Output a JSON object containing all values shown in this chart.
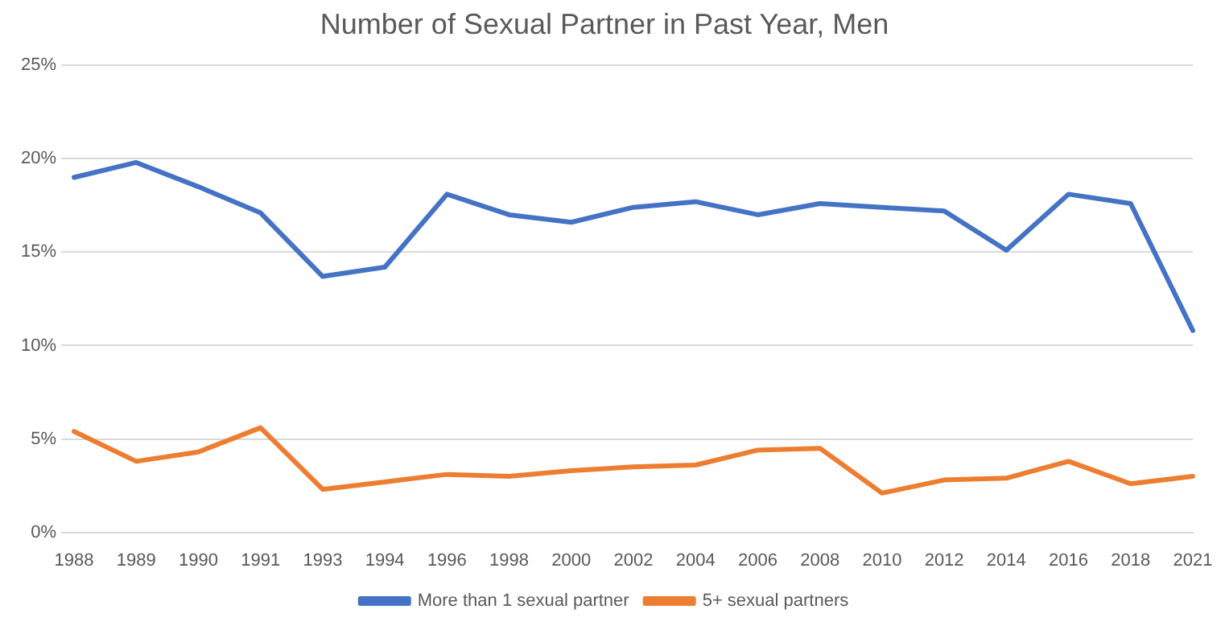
{
  "chart_data": {
    "type": "line",
    "title": "Number of Sexual Partner in Past Year, Men",
    "categories": [
      "1988",
      "1989",
      "1990",
      "1991",
      "1993",
      "1994",
      "1996",
      "1998",
      "2000",
      "2002",
      "2004",
      "2006",
      "2008",
      "2010",
      "2012",
      "2014",
      "2016",
      "2018",
      "2021"
    ],
    "series": [
      {
        "name": "More than 1 sexual partner",
        "color": "#4472c4",
        "values": [
          19.0,
          19.8,
          18.5,
          17.1,
          13.7,
          14.2,
          18.1,
          17.0,
          16.6,
          17.4,
          17.7,
          17.0,
          17.6,
          17.4,
          17.2,
          15.1,
          18.1,
          17.6,
          10.8
        ]
      },
      {
        "name": "5+ sexual partners",
        "color": "#ed7d31",
        "values": [
          5.4,
          3.8,
          4.3,
          5.6,
          2.3,
          2.7,
          3.1,
          3.0,
          3.3,
          3.5,
          3.6,
          4.4,
          4.5,
          2.1,
          2.8,
          2.9,
          3.8,
          2.6,
          3.0
        ]
      }
    ],
    "ylim": [
      0,
      25
    ],
    "yticks": [
      {
        "value": 0,
        "label": "0%"
      },
      {
        "value": 5,
        "label": "5%"
      },
      {
        "value": 10,
        "label": "10%"
      },
      {
        "value": 15,
        "label": "15%"
      },
      {
        "value": 20,
        "label": "20%"
      },
      {
        "value": 25,
        "label": "25%"
      }
    ],
    "grid": "y",
    "legend": "bottom",
    "marker": "none",
    "line_style": "solid"
  }
}
